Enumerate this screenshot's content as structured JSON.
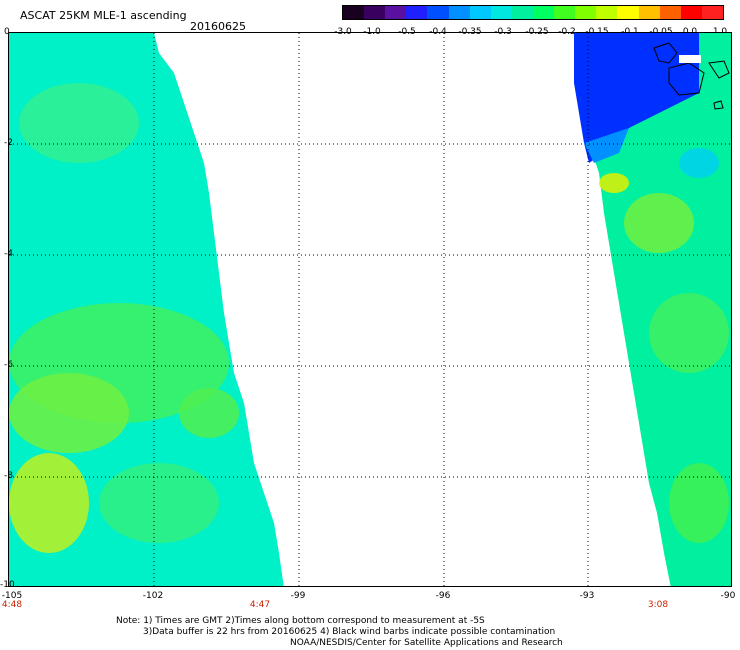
{
  "header": {
    "title": "ASCAT 25KM MLE-1 ascending",
    "date": "20160625"
  },
  "colorbar": {
    "colors": [
      "#1a0020",
      "#3a0060",
      "#5a10a0",
      "#2020ff",
      "#0050ff",
      "#0090ff",
      "#00c8ff",
      "#00e8e0",
      "#00f0a0",
      "#00ff60",
      "#40ff20",
      "#80ff00",
      "#c0ff00",
      "#ffff00",
      "#ffc000",
      "#ff6000",
      "#ff0000",
      "#ff2020"
    ],
    "tick_labels": [
      "-3.0",
      "-1.0",
      "-0.5",
      "-0.4",
      "-0.35",
      "-0.3",
      "-0.25",
      "-0.2",
      "-0.15",
      "-0.1",
      "-0.05",
      "0.0",
      "1.0"
    ]
  },
  "map": {
    "lat_labels": [
      "0",
      "-2",
      "-4",
      "-6",
      "-8",
      "-10"
    ],
    "lon_labels": [
      "-105",
      "-102",
      "-99",
      "-96",
      "-93",
      "-90"
    ],
    "time_labels": [
      "4:48",
      "4:47",
      "3:08"
    ]
  },
  "footer": {
    "note_line1": "Note: 1) Times are GMT 2)Times along bottom correspond to measurement at -5S",
    "note_line2": "3)Data buffer is 22 hrs from 20160625 4) Black wind barbs indicate possible contamination",
    "credit": "NOAA/NESDIS/Center for Satellite Applications and Research"
  }
}
